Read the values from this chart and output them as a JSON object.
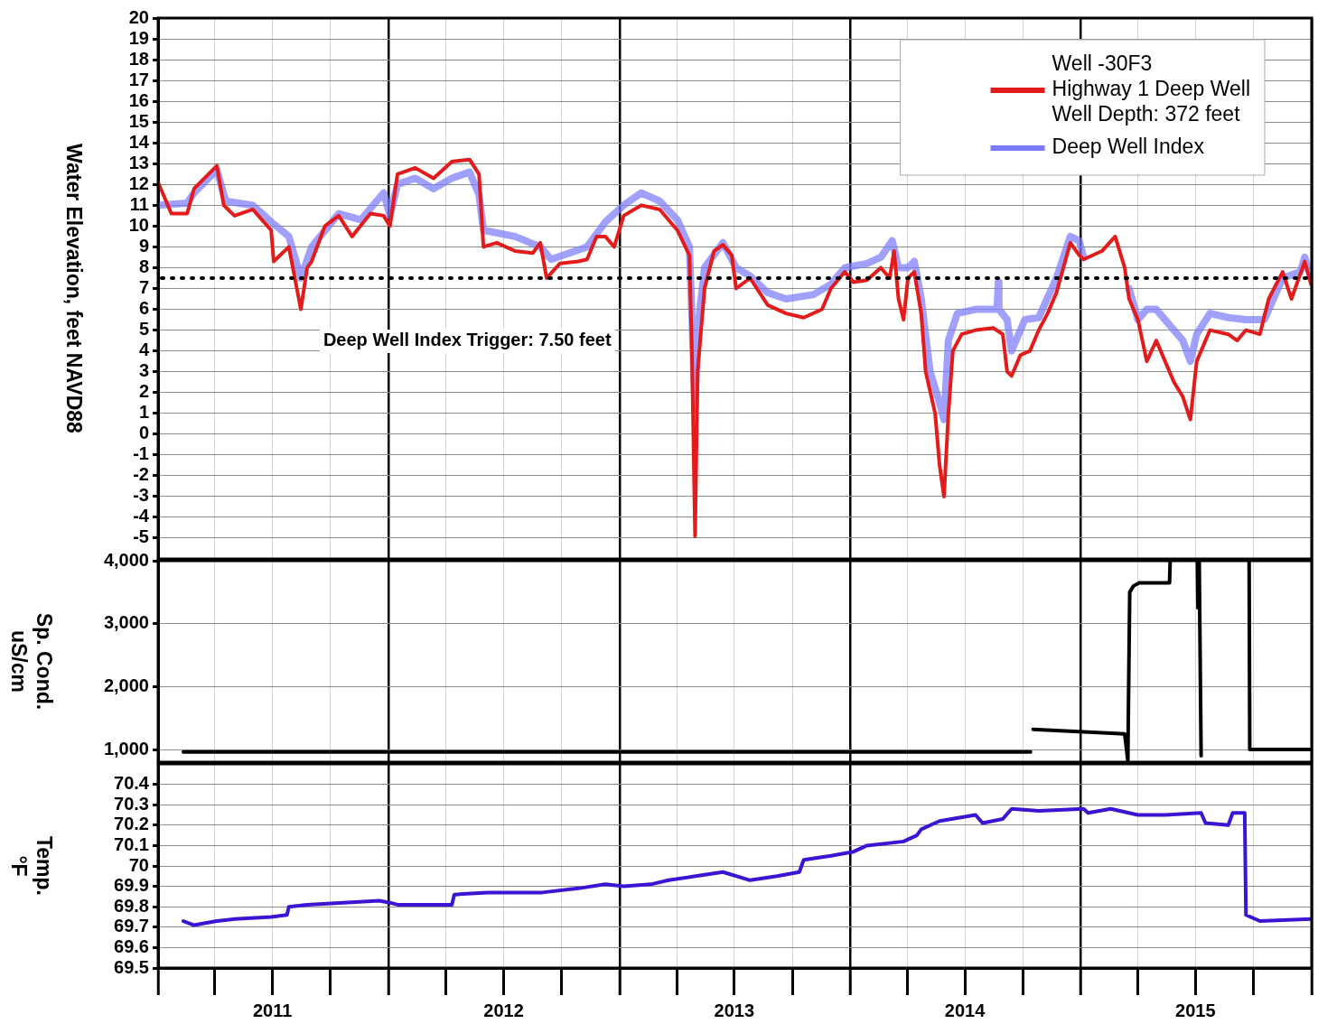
{
  "chart_data": [
    {
      "type": "line",
      "ylabel": "Water Elevation, feet NAVD88",
      "xlim": [
        "2011-01-01",
        "2016-01-01"
      ],
      "xticks": [
        {
          "value": "2011-01-01",
          "label": null
        },
        {
          "value": "2011-04-01",
          "label": null
        },
        {
          "value": "2011-07-01",
          "label": null
        },
        {
          "value": "2011-10-01",
          "label": null
        },
        {
          "value": "2012-01-01",
          "label": null
        },
        {
          "value": "2012-04-01",
          "label": null
        },
        {
          "value": "2012-07-01",
          "label": null
        },
        {
          "value": "2012-10-01",
          "label": null
        },
        {
          "value": "2013-01-01",
          "label": null
        },
        {
          "value": "2013-04-01",
          "label": null
        },
        {
          "value": "2013-07-01",
          "label": null
        },
        {
          "value": "2013-10-01",
          "label": null
        },
        {
          "value": "2014-01-01",
          "label": null
        },
        {
          "value": "2014-04-01",
          "label": null
        },
        {
          "value": "2014-07-01",
          "label": null
        },
        {
          "value": "2014-10-01",
          "label": null
        },
        {
          "value": "2015-01-01",
          "label": null
        },
        {
          "value": "2015-04-01",
          "label": null
        },
        {
          "value": "2015-07-01",
          "label": null
        },
        {
          "value": "2015-10-01",
          "label": null
        },
        {
          "value": "2016-01-01",
          "label": null
        }
      ],
      "ylim": [
        -6,
        20
      ],
      "yticks": [
        -5,
        -4,
        -3,
        -2,
        -1,
        0,
        1,
        2,
        3,
        4,
        5,
        6,
        7,
        8,
        9,
        10,
        11,
        12,
        13,
        14,
        15,
        16,
        17,
        18,
        19,
        20
      ],
      "grid": true,
      "legend": "top right",
      "tick_labels": "y",
      "marker": "none",
      "line_style": "solid",
      "ref_lines": [
        {
          "axis": "y",
          "value": 7.5,
          "label": "Deep Well Index Trigger: 7.50 feet",
          "line_style": "dotted",
          "color": "#000000"
        }
      ],
      "series": [
        {
          "name": "Well -30F3\nHighway 1 Deep Well\nWell Depth: 372 feet",
          "color": "#e31b1b",
          "x": [
            "2011-01-01",
            "2011-01-22",
            "2011-02-16",
            "2011-02-27",
            "2011-04-04",
            "2011-04-15",
            "2011-05-02",
            "2011-05-31",
            "2011-06-29",
            "2011-07-03",
            "2011-07-27",
            "2011-08-15",
            "2011-08-25",
            "2011-09-01",
            "2011-09-22",
            "2011-10-14",
            "2011-11-04",
            "2011-12-03",
            "2011-12-24",
            "2012-01-03",
            "2012-01-15",
            "2012-02-12",
            "2012-03-12",
            "2012-04-10",
            "2012-05-08",
            "2012-05-23",
            "2012-05-30",
            "2012-06-20",
            "2012-07-19",
            "2012-08-16",
            "2012-08-28",
            "2012-09-07",
            "2012-09-28",
            "2012-10-27",
            "2012-11-10",
            "2012-11-25",
            "2012-12-09",
            "2012-12-23",
            "2013-01-07",
            "2013-02-04",
            "2013-03-05",
            "2013-04-02",
            "2013-04-21",
            "2013-04-25",
            "2013-04-30",
            "2013-05-04",
            "2013-05-15",
            "2013-05-30",
            "2013-06-13",
            "2013-06-27",
            "2013-07-04",
            "2013-07-26",
            "2013-08-23",
            "2013-09-21",
            "2013-10-19",
            "2013-11-17",
            "2013-12-01",
            "2013-12-23",
            "2014-01-06",
            "2014-01-27",
            "2014-02-18",
            "2014-03-04",
            "2014-03-11",
            "2014-03-18",
            "2014-03-26",
            "2014-04-02",
            "2014-04-12",
            "2014-04-23",
            "2014-04-30",
            "2014-05-15",
            "2014-05-22",
            "2014-05-29",
            "2014-06-05",
            "2014-06-12",
            "2014-06-26",
            "2014-07-18",
            "2014-08-15",
            "2014-08-30",
            "2014-09-06",
            "2014-09-13",
            "2014-09-27",
            "2014-10-12",
            "2014-10-26",
            "2014-11-09",
            "2014-11-23",
            "2014-12-15",
            "2014-12-29",
            "2015-01-05",
            "2015-02-03",
            "2015-02-24",
            "2015-03-11",
            "2015-03-18",
            "2015-04-01",
            "2015-04-15",
            "2015-04-30",
            "2015-05-14",
            "2015-05-28",
            "2015-06-11",
            "2015-06-23",
            "2015-07-03",
            "2015-07-24",
            "2015-08-22",
            "2015-09-05",
            "2015-09-19",
            "2015-10-11",
            "2015-10-25",
            "2015-11-16",
            "2015-11-30",
            "2015-12-21",
            "2015-12-31"
          ],
          "values": [
            12.1,
            10.6,
            10.6,
            11.8,
            12.9,
            11,
            10.5,
            10.8,
            9.8,
            8.3,
            9,
            6,
            8,
            8.3,
            10,
            10.5,
            9.5,
            10.6,
            10.5,
            10,
            12.5,
            12.8,
            12.3,
            13.1,
            13.2,
            12.5,
            9,
            9.2,
            8.8,
            8.7,
            9.2,
            7.5,
            8.2,
            8.3,
            8.4,
            9.5,
            9.5,
            9,
            10.5,
            11,
            10.8,
            9.8,
            8.6,
            4,
            -4.9,
            3,
            7,
            8.8,
            9.1,
            8.6,
            7,
            7.5,
            6.2,
            5.8,
            5.6,
            6,
            7,
            7.8,
            7.3,
            7.4,
            8,
            7.5,
            8.8,
            6.5,
            5.5,
            7.5,
            7.8,
            5.8,
            3,
            1,
            -1.5,
            -3,
            1,
            4,
            4.8,
            5,
            5.1,
            4.8,
            3,
            2.8,
            3.8,
            4,
            5,
            5.8,
            6.8,
            9.2,
            8.6,
            8.4,
            8.8,
            9.5,
            8,
            6.5,
            5.5,
            3.5,
            4.5,
            3.5,
            2.5,
            1.8,
            0.7,
            3.5,
            5,
            4.8,
            4.5,
            5,
            4.8,
            6.5,
            7.8,
            6.5,
            8.3,
            7.2
          ]
        },
        {
          "name": "Deep Well Index",
          "color": "#7b7bff",
          "x": [
            "2011-01-01",
            "2011-02-16",
            "2011-02-27",
            "2011-04-04",
            "2011-04-18",
            "2011-05-31",
            "2011-06-29",
            "2011-07-27",
            "2011-08-15",
            "2011-09-01",
            "2011-10-14",
            "2011-11-18",
            "2011-12-24",
            "2012-01-03",
            "2012-01-15",
            "2012-02-12",
            "2012-03-12",
            "2012-04-10",
            "2012-05-08",
            "2012-05-23",
            "2012-05-30",
            "2012-07-19",
            "2012-08-28",
            "2012-09-14",
            "2012-11-10",
            "2012-12-09",
            "2013-01-07",
            "2013-02-04",
            "2013-03-05",
            "2013-04-02",
            "2013-04-21",
            "2013-04-27",
            "2013-04-30",
            "2013-05-04",
            "2013-05-15",
            "2013-06-13",
            "2013-07-04",
            "2013-07-26",
            "2013-08-23",
            "2013-09-21",
            "2013-11-03",
            "2013-12-01",
            "2013-12-23",
            "2014-01-27",
            "2014-02-18",
            "2014-03-08",
            "2014-03-18",
            "2014-04-02",
            "2014-04-12",
            "2014-04-23",
            "2014-05-07",
            "2014-05-22",
            "2014-05-29",
            "2014-06-05",
            "2014-06-19",
            "2014-07-18",
            "2014-08-21",
            "2014-08-23",
            "2014-08-24",
            "2014-09-06",
            "2014-09-13",
            "2014-10-04",
            "2014-10-26",
            "2014-11-23",
            "2014-12-15",
            "2014-12-29",
            "2015-01-05",
            "2015-01-20",
            "2015-03-18",
            "2015-04-01",
            "2015-04-15",
            "2015-04-30",
            "2015-05-14",
            "2015-05-28",
            "2015-06-11",
            "2015-06-23",
            "2015-07-03",
            "2015-07-24",
            "2015-08-22",
            "2015-09-19",
            "2015-10-18",
            "2015-11-16",
            "2015-12-14",
            "2015-12-21",
            "2015-12-31"
          ],
          "values": [
            11,
            11.1,
            11.6,
            12.7,
            11.2,
            11,
            10.2,
            9.5,
            7.5,
            9,
            10.6,
            10.3,
            11.6,
            10.5,
            12,
            12.3,
            11.8,
            12.3,
            12.6,
            11.5,
            9.8,
            9.5,
            9,
            8.4,
            9,
            10.2,
            11,
            11.6,
            11.2,
            10.3,
            9,
            4,
            1.2,
            5,
            8,
            9.2,
            8,
            7.6,
            6.8,
            6.5,
            6.7,
            7.2,
            8,
            8.2,
            8.5,
            9.3,
            8,
            8,
            8.3,
            6.5,
            3,
            1.5,
            0.7,
            4.5,
            5.8,
            6,
            6,
            7.3,
            6,
            5.5,
            4,
            5.5,
            5.6,
            7.5,
            9.5,
            9.3,
            8.5,
            null,
            7,
            5.5,
            6,
            6,
            5.5,
            5,
            4.5,
            3.5,
            4.8,
            5.8,
            5.6,
            5.5,
            5.5,
            7.5,
            7.8,
            8.5,
            7.5
          ]
        }
      ]
    },
    {
      "type": "line",
      "ylabel": "Sp. Cond.\nuS/cm",
      "xlim": [
        "2011-01-01",
        "2016-01-01"
      ],
      "xticks": [
        {
          "value": "2011-01-01",
          "label": null
        },
        {
          "value": "2011-04-01",
          "label": null
        },
        {
          "value": "2011-07-01",
          "label": null
        },
        {
          "value": "2011-10-01",
          "label": null
        },
        {
          "value": "2012-01-01",
          "label": null
        },
        {
          "value": "2012-04-01",
          "label": null
        },
        {
          "value": "2012-07-01",
          "label": null
        },
        {
          "value": "2012-10-01",
          "label": null
        },
        {
          "value": "2013-01-01",
          "label": null
        },
        {
          "value": "2013-04-01",
          "label": null
        },
        {
          "value": "2013-07-01",
          "label": null
        },
        {
          "value": "2013-10-01",
          "label": null
        },
        {
          "value": "2014-01-01",
          "label": null
        },
        {
          "value": "2014-04-01",
          "label": null
        },
        {
          "value": "2014-07-01",
          "label": null
        },
        {
          "value": "2014-10-01",
          "label": null
        },
        {
          "value": "2015-01-01",
          "label": null
        },
        {
          "value": "2015-04-01",
          "label": null
        },
        {
          "value": "2015-07-01",
          "label": null
        },
        {
          "value": "2015-10-01",
          "label": null
        },
        {
          "value": "2016-01-01",
          "label": null
        }
      ],
      "ylim": [
        800,
        4000
      ],
      "yticks": [
        {
          "value": 1000,
          "label": "1,000"
        },
        {
          "value": 2000,
          "label": "2,000"
        },
        {
          "value": 3000,
          "label": "3,000"
        },
        {
          "value": 4000,
          "label": "4,000"
        }
      ],
      "grid": true,
      "tick_labels": "y",
      "marker": "none",
      "line_style": "solid",
      "series": [
        {
          "color": "#000000",
          "x": [
            "2011-02-10",
            "2012-01-01",
            "2013-01-01",
            "2014-01-01",
            "2014-10-13",
            "2014-10-15",
            "2014-10-17",
            "2015-01-05",
            "2015-03-11",
            "2015-03-16",
            "2015-03-19",
            "2015-03-25",
            "2015-04-03",
            "2015-05-21",
            "2015-05-22",
            "2015-06-01",
            "2015-07-04",
            "2015-07-05",
            "2015-07-07",
            "2015-07-10",
            "2015-08-01",
            "2015-09-24",
            "2015-09-25",
            "2015-12-31"
          ],
          "values": [
            960,
            960,
            960,
            960,
            960,
            null,
            1320,
            1280,
            1250,
            820,
            3500,
            3600,
            3650,
            3650,
            4000,
            null,
            4000,
            3250,
            4000,
            900,
            null,
            4000,
            1000,
            1000
          ]
        }
      ]
    },
    {
      "type": "line",
      "ylabel": "Temp.\n°F",
      "xlim": [
        "2011-01-01",
        "2016-01-01"
      ],
      "xticks": [
        {
          "value": "2011-01-01",
          "label": null
        },
        {
          "value": "2011-04-01",
          "label": null
        },
        {
          "value": "2011-07-01",
          "label": "2011"
        },
        {
          "value": "2011-10-01",
          "label": null
        },
        {
          "value": "2012-01-01",
          "label": null
        },
        {
          "value": "2012-04-01",
          "label": null
        },
        {
          "value": "2012-07-01",
          "label": "2012"
        },
        {
          "value": "2012-10-01",
          "label": null
        },
        {
          "value": "2013-01-01",
          "label": null
        },
        {
          "value": "2013-04-01",
          "label": null
        },
        {
          "value": "2013-07-01",
          "label": "2013"
        },
        {
          "value": "2013-10-01",
          "label": null
        },
        {
          "value": "2014-01-01",
          "label": null
        },
        {
          "value": "2014-04-01",
          "label": null
        },
        {
          "value": "2014-07-01",
          "label": "2014"
        },
        {
          "value": "2014-10-01",
          "label": null
        },
        {
          "value": "2015-01-01",
          "label": null
        },
        {
          "value": "2015-04-01",
          "label": null
        },
        {
          "value": "2015-07-01",
          "label": "2015"
        },
        {
          "value": "2015-10-01",
          "label": null
        },
        {
          "value": "2016-01-01",
          "label": null
        }
      ],
      "ylim": [
        69.5,
        70.5
      ],
      "yticks": [
        69.5,
        69.6,
        69.7,
        69.8,
        69.9,
        70,
        70.1,
        70.2,
        70.3,
        70.4
      ],
      "grid": true,
      "marker": "none",
      "line_style": "solid",
      "series": [
        {
          "color": "#3b14d4",
          "x": [
            "2011-02-10",
            "2011-02-27",
            "2011-04-04",
            "2011-05-02",
            "2011-06-29",
            "2011-07-24",
            "2011-07-27",
            "2011-08-25",
            "2011-10-21",
            "2011-12-17",
            "2012-01-03",
            "2012-01-15",
            "2012-04-10",
            "2012-04-14",
            "2012-06-06",
            "2012-08-31",
            "2012-10-27",
            "2012-12-09",
            "2013-01-07",
            "2013-02-19",
            "2013-03-19",
            "2013-05-01",
            "2013-06-13",
            "2013-07-26",
            "2013-09-07",
            "2013-10-12",
            "2013-10-19",
            "2013-12-01",
            "2014-01-06",
            "2014-01-27",
            "2014-03-26",
            "2014-04-16",
            "2014-04-23",
            "2014-05-22",
            "2014-07-18",
            "2014-07-29",
            "2014-08-30",
            "2014-09-13",
            "2014-10-26",
            "2015-01-05",
            "2015-01-12",
            "2015-02-17",
            "2015-04-01",
            "2015-05-14",
            "2015-07-10",
            "2015-07-17",
            "2015-08-22",
            "2015-08-29",
            "2015-09-17",
            "2015-09-19",
            "2015-10-11",
            "2015-12-31"
          ],
          "values": [
            69.73,
            69.71,
            69.73,
            69.74,
            69.75,
            69.76,
            69.8,
            69.81,
            69.82,
            69.83,
            69.82,
            69.81,
            69.81,
            69.86,
            69.87,
            69.87,
            69.89,
            69.91,
            69.9,
            69.91,
            69.93,
            69.95,
            69.97,
            69.93,
            69.95,
            69.97,
            70.03,
            70.05,
            70.07,
            70.1,
            70.12,
            70.15,
            70.18,
            70.22,
            70.25,
            70.21,
            70.23,
            70.28,
            70.27,
            70.28,
            70.26,
            70.28,
            70.25,
            70.25,
            70.26,
            70.21,
            70.2,
            70.26,
            70.26,
            69.76,
            69.73,
            69.74
          ]
        }
      ]
    }
  ]
}
